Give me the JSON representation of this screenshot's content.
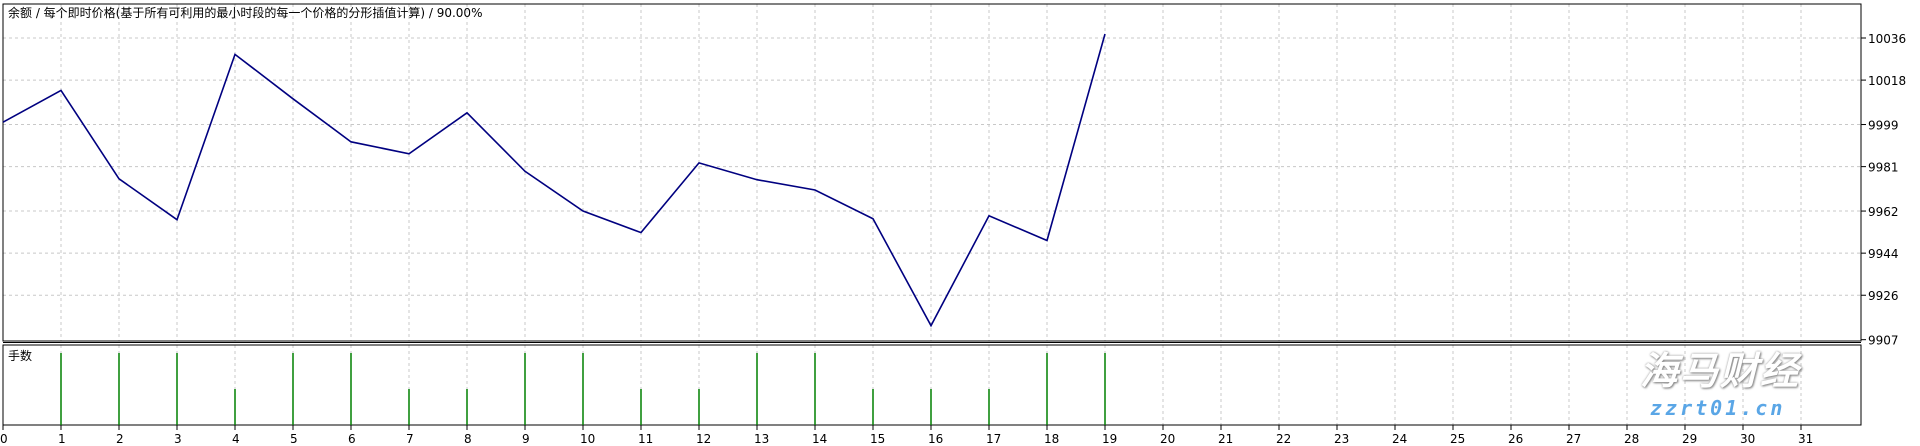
{
  "chart_data": [
    {
      "type": "line",
      "title": "余额 / 每个即时价格(基于所有可利用的最小时段的每一个价格的分形插值计算) / 90.00%",
      "x": [
        0,
        1,
        2,
        3,
        4,
        5,
        6,
        7,
        8,
        9,
        10,
        11,
        12,
        13,
        14,
        15,
        16,
        17,
        18,
        19
      ],
      "series": [
        {
          "values": [
            10000,
            10013.6,
            9975.8,
            9958.3,
            10029,
            10010,
            9991.6,
            9986.5,
            10004,
            9979,
            9962,
            9952.8,
            9982.6,
            9975.4,
            9971,
            9958.7,
            9913,
            9960,
            9949.4,
            10037.7
          ]
        }
      ],
      "ylim": [
        9907,
        10044
      ],
      "xlim": [
        0,
        32
      ],
      "yticks": [
        "10036",
        "10018",
        "9999",
        "9981",
        "9962",
        "9944",
        "9926",
        "9907"
      ],
      "ytick_values": [
        10036,
        10018,
        9999,
        9981,
        9962,
        9944,
        9926,
        9907
      ],
      "xticks": [
        "0",
        "1",
        "2",
        "3",
        "4",
        "5",
        "6",
        "7",
        "8",
        "9",
        "10",
        "11",
        "12",
        "13",
        "14",
        "15",
        "16",
        "17",
        "18",
        "19",
        "20",
        "21",
        "22",
        "23",
        "24",
        "25",
        "26",
        "27",
        "28",
        "29",
        "30",
        "31"
      ],
      "grid": true,
      "line_color": "#000080"
    },
    {
      "type": "bar",
      "title": "手数",
      "x": [
        1,
        2,
        3,
        4,
        5,
        6,
        7,
        8,
        9,
        10,
        11,
        12,
        13,
        14,
        15,
        16,
        17,
        18,
        19
      ],
      "values": [
        2,
        2,
        2,
        1,
        2,
        2,
        1,
        1,
        2,
        2,
        1,
        1,
        2,
        2,
        1,
        1,
        1,
        2,
        2
      ],
      "ylim": [
        0,
        2.1
      ],
      "bar_color": "#008000"
    }
  ],
  "watermark": {
    "logo_text": "海马财经",
    "site": "zzrt01.cn"
  }
}
